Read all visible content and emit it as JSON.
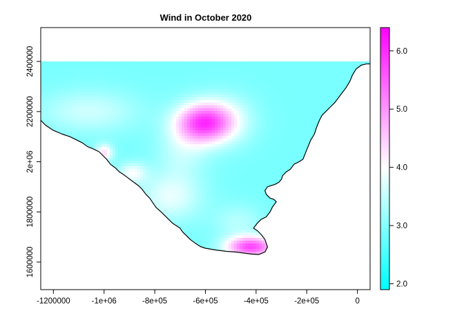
{
  "chart_data": {
    "type": "heatmap",
    "title": "Wind in October 2020",
    "xlabel": "",
    "ylabel": "",
    "xlim": [
      -1250000,
      50000
    ],
    "ylim": [
      1490000,
      2535000
    ],
    "x_ticks": [
      {
        "value": -1200000,
        "label": "-1200000"
      },
      {
        "value": -1000000,
        "label": "-1e+06"
      },
      {
        "value": -800000,
        "label": "-8e+05"
      },
      {
        "value": -600000,
        "label": "-6e+05"
      },
      {
        "value": -400000,
        "label": "-4e+05"
      },
      {
        "value": -200000,
        "label": "-2e+05"
      },
      {
        "value": 0,
        "label": "0"
      }
    ],
    "y_ticks": [
      {
        "value": 1600000,
        "label": "1600000"
      },
      {
        "value": 1800000,
        "label": "1800000"
      },
      {
        "value": 2000000,
        "label": "2e+06"
      },
      {
        "value": 2200000,
        "label": "2200000"
      },
      {
        "value": 2400000,
        "label": "2400000"
      }
    ],
    "colorbar": {
      "min": 1.9,
      "max": 6.4,
      "ticks": [
        {
          "value": 2.0,
          "label": "2.0"
        },
        {
          "value": 3.0,
          "label": "3.0"
        },
        {
          "value": 4.0,
          "label": "4.0"
        },
        {
          "value": 5.0,
          "label": "5.0"
        },
        {
          "value": 6.0,
          "label": "6.0"
        }
      ],
      "colors": {
        "low": "#00ffff",
        "mid": "#ffffff",
        "high": "#ff00ff"
      }
    },
    "field": {
      "base": 2.9,
      "hotspots": [
        {
          "x": -610000,
          "y": 2155000,
          "sx": 75000,
          "sy": 55000,
          "amp": 2.6
        },
        {
          "x": -420000,
          "y": 1660000,
          "sx": 70000,
          "sy": 30000,
          "amp": 2.8
        },
        {
          "x": -1000000,
          "y": 2035000,
          "sx": 25000,
          "sy": 25000,
          "amp": 1.4
        },
        {
          "x": -890000,
          "y": 1955000,
          "sx": 40000,
          "sy": 30000,
          "amp": 1.0
        },
        {
          "x": -740000,
          "y": 1860000,
          "sx": 90000,
          "sy": 70000,
          "amp": 0.9
        },
        {
          "x": -520000,
          "y": 2165000,
          "sx": 80000,
          "sy": 70000,
          "amp": 0.8
        },
        {
          "x": -1060000,
          "y": 2200000,
          "sx": 140000,
          "sy": 60000,
          "amp": 0.7
        },
        {
          "x": -690000,
          "y": 2050000,
          "sx": 70000,
          "sy": 80000,
          "amp": 0.6
        },
        {
          "x": -470000,
          "y": 1760000,
          "sx": 70000,
          "sy": 50000,
          "amp": 0.5
        }
      ]
    },
    "coastline": {
      "west": [
        [
          -1250000,
          2165000
        ],
        [
          -1230000,
          2145000
        ],
        [
          -1200000,
          2125000
        ],
        [
          -1165000,
          2110000
        ],
        [
          -1135000,
          2100000
        ],
        [
          -1105000,
          2085000
        ],
        [
          -1085000,
          2075000
        ],
        [
          -1065000,
          2060000
        ],
        [
          -1045000,
          2052000
        ],
        [
          -1020000,
          2040000
        ],
        [
          -1005000,
          2025000
        ],
        [
          -990000,
          2010000
        ],
        [
          -975000,
          1990000
        ],
        [
          -955000,
          1975000
        ],
        [
          -940000,
          1960000
        ],
        [
          -925000,
          1950000
        ],
        [
          -905000,
          1935000
        ],
        [
          -885000,
          1920000
        ],
        [
          -865000,
          1905000
        ],
        [
          -850000,
          1890000
        ],
        [
          -835000,
          1870000
        ],
        [
          -820000,
          1855000
        ],
        [
          -810000,
          1840000
        ],
        [
          -795000,
          1818000
        ],
        [
          -775000,
          1800000
        ],
        [
          -760000,
          1785000
        ],
        [
          -745000,
          1770000
        ],
        [
          -730000,
          1755000
        ],
        [
          -715000,
          1745000
        ],
        [
          -700000,
          1735000
        ],
        [
          -690000,
          1720000
        ],
        [
          -675000,
          1705000
        ],
        [
          -660000,
          1690000
        ],
        [
          -640000,
          1675000
        ],
        [
          -620000,
          1662000
        ],
        [
          -600000,
          1655000
        ],
        [
          -560000,
          1648000
        ],
        [
          -520000,
          1643000
        ],
        [
          -480000,
          1640000
        ],
        [
          -450000,
          1636000
        ],
        [
          -420000,
          1632000
        ],
        [
          -390000,
          1630000
        ],
        [
          -365000,
          1640000
        ],
        [
          -355000,
          1660000
        ]
      ],
      "east": [
        [
          -355000,
          1660000
        ],
        [
          -365000,
          1690000
        ],
        [
          -380000,
          1710000
        ],
        [
          -395000,
          1725000
        ],
        [
          -410000,
          1735000
        ],
        [
          -395000,
          1755000
        ],
        [
          -380000,
          1770000
        ],
        [
          -360000,
          1780000
        ],
        [
          -345000,
          1800000
        ],
        [
          -335000,
          1820000
        ],
        [
          -320000,
          1840000
        ],
        [
          -330000,
          1850000
        ],
        [
          -345000,
          1855000
        ],
        [
          -360000,
          1870000
        ],
        [
          -365000,
          1885000
        ],
        [
          -355000,
          1900000
        ],
        [
          -340000,
          1905000
        ],
        [
          -325000,
          1910000
        ],
        [
          -310000,
          1918000
        ],
        [
          -300000,
          1930000
        ],
        [
          -295000,
          1945000
        ],
        [
          -280000,
          1960000
        ],
        [
          -265000,
          1970000
        ],
        [
          -250000,
          1990000
        ],
        [
          -230000,
          2000000
        ],
        [
          -215000,
          2010000
        ],
        [
          -205000,
          2035000
        ],
        [
          -195000,
          2060000
        ],
        [
          -185000,
          2085000
        ],
        [
          -170000,
          2110000
        ],
        [
          -160000,
          2140000
        ],
        [
          -150000,
          2165000
        ],
        [
          -140000,
          2185000
        ],
        [
          -125000,
          2200000
        ],
        [
          -105000,
          2220000
        ],
        [
          -90000,
          2235000
        ],
        [
          -75000,
          2255000
        ],
        [
          -60000,
          2275000
        ],
        [
          -45000,
          2295000
        ],
        [
          -30000,
          2320000
        ],
        [
          -20000,
          2345000
        ],
        [
          -5000,
          2370000
        ],
        [
          15000,
          2385000
        ],
        [
          35000,
          2390000
        ],
        [
          50000,
          2390000
        ]
      ]
    }
  }
}
